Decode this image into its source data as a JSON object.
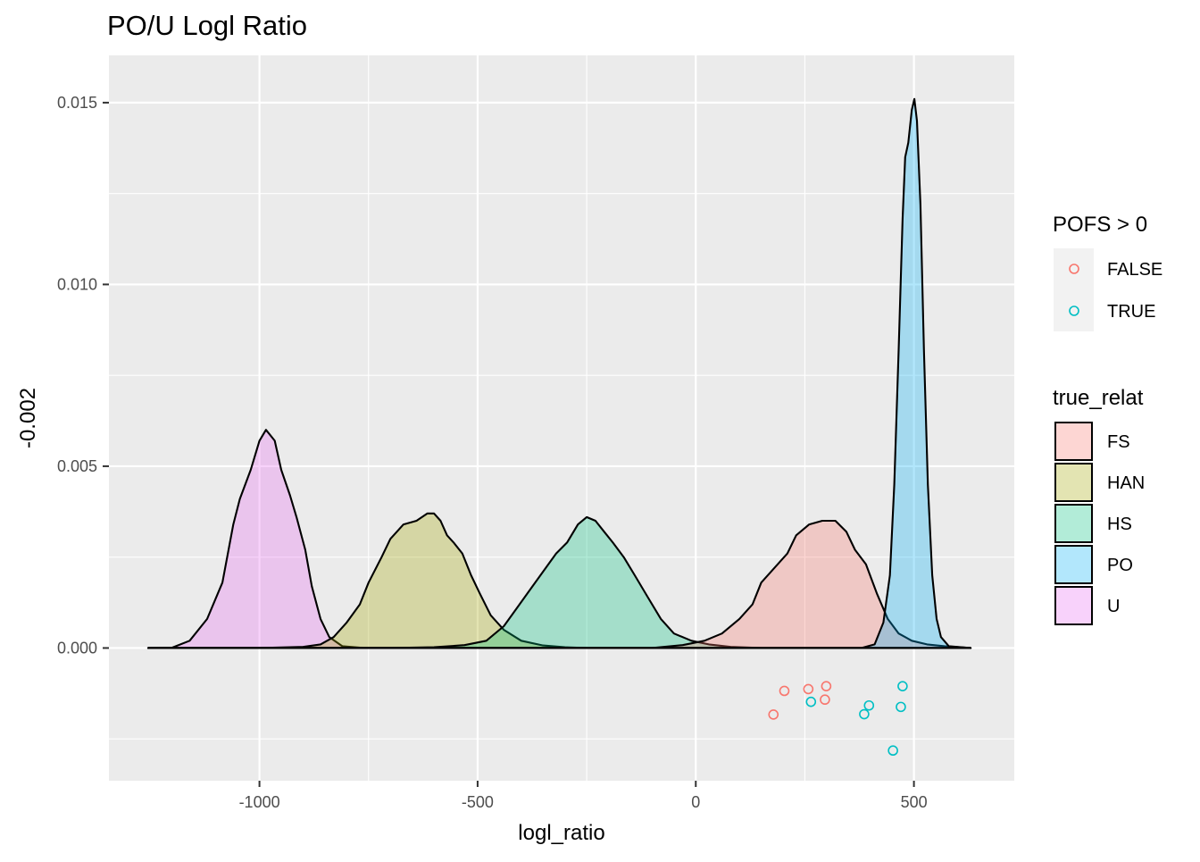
{
  "chart_data": {
    "type": "area",
    "title": "PO/U Logl Ratio",
    "xlabel": "logl_ratio",
    "ylabel": "-0.002",
    "xlim": [
      -1345,
      730
    ],
    "ylim": [
      -0.00365,
      0.0163
    ],
    "x_ticks": [
      {
        "value": -1000,
        "label": "-1000"
      },
      {
        "value": -500,
        "label": "-500"
      },
      {
        "value": 0,
        "label": "0"
      },
      {
        "value": 500,
        "label": "500"
      }
    ],
    "y_ticks": [
      {
        "value": 0,
        "label": "0.000"
      },
      {
        "value": 0.005,
        "label": "0.005"
      },
      {
        "value": 0.01,
        "label": "0.010"
      },
      {
        "value": 0.015,
        "label": "0.015"
      }
    ],
    "grid": true,
    "legend_position": "right",
    "fill_legend": {
      "title": "true_relat",
      "entries": [
        {
          "name": "FS",
          "color": "#F8766D"
        },
        {
          "name": "HAN",
          "color": "#A3A500"
        },
        {
          "name": "HS",
          "color": "#00BF7D"
        },
        {
          "name": "PO",
          "color": "#00B0F6"
        },
        {
          "name": "U",
          "color": "#E76BF3"
        }
      ]
    },
    "point_legend": {
      "title": "POFS > 0",
      "entries": [
        {
          "name": "FALSE",
          "color": "#F8766D"
        },
        {
          "name": "TRUE",
          "color": "#00BFC4"
        }
      ]
    },
    "density_series": [
      {
        "name": "U",
        "color": "#E76BF3",
        "points": [
          [
            -1255,
            0
          ],
          [
            -1200,
            1e-05
          ],
          [
            -1160,
            0.0002
          ],
          [
            -1120,
            0.0008
          ],
          [
            -1085,
            0.0018
          ],
          [
            -1060,
            0.0034
          ],
          [
            -1045,
            0.0041
          ],
          [
            -1020,
            0.0049
          ],
          [
            -1000,
            0.0057
          ],
          [
            -985,
            0.006
          ],
          [
            -965,
            0.0057
          ],
          [
            -950,
            0.0049
          ],
          [
            -930,
            0.0042
          ],
          [
            -915,
            0.0036
          ],
          [
            -895,
            0.0027
          ],
          [
            -880,
            0.0017
          ],
          [
            -860,
            0.0008
          ],
          [
            -840,
            0.0003
          ],
          [
            -810,
            5e-05
          ],
          [
            -760,
            0
          ],
          [
            -700,
            0
          ],
          [
            -650,
            0
          ],
          [
            -600,
            0
          ],
          [
            -550,
            0
          ],
          [
            -500,
            0
          ],
          [
            -450,
            0
          ],
          [
            -400,
            0
          ],
          [
            -350,
            0
          ],
          [
            -300,
            0
          ],
          [
            -250,
            0
          ],
          [
            -200,
            0
          ],
          [
            -150,
            0
          ],
          [
            -100,
            0
          ],
          [
            -50,
            0
          ],
          [
            0,
            0
          ],
          [
            50,
            0
          ],
          [
            100,
            0
          ],
          [
            150,
            0
          ],
          [
            200,
            0
          ],
          [
            250,
            0
          ],
          [
            300,
            0
          ],
          [
            350,
            0
          ],
          [
            400,
            0
          ],
          [
            450,
            0
          ],
          [
            500,
            0
          ],
          [
            550,
            0
          ],
          [
            630,
            0
          ]
        ]
      },
      {
        "name": "HAN",
        "color": "#A3A500",
        "points": [
          [
            -1255,
            0
          ],
          [
            -1000,
            0
          ],
          [
            -900,
            3e-05
          ],
          [
            -860,
            0.0001
          ],
          [
            -830,
            0.0003
          ],
          [
            -800,
            0.0007
          ],
          [
            -770,
            0.0012
          ],
          [
            -750,
            0.0018
          ],
          [
            -720,
            0.0025
          ],
          [
            -700,
            0.003
          ],
          [
            -670,
            0.0034
          ],
          [
            -640,
            0.0035
          ],
          [
            -615,
            0.0037
          ],
          [
            -600,
            0.0037
          ],
          [
            -585,
            0.0035
          ],
          [
            -570,
            0.0031
          ],
          [
            -555,
            0.0029
          ],
          [
            -535,
            0.0026
          ],
          [
            -515,
            0.002
          ],
          [
            -495,
            0.0015
          ],
          [
            -470,
            0.0009
          ],
          [
            -440,
            0.0005
          ],
          [
            -400,
            0.0002
          ],
          [
            -350,
            7e-05
          ],
          [
            -300,
            2e-05
          ],
          [
            -250,
            0
          ],
          [
            0,
            0
          ],
          [
            630,
            0
          ]
        ]
      },
      {
        "name": "HS",
        "color": "#00BF7D",
        "points": [
          [
            -1255,
            0
          ],
          [
            -700,
            0
          ],
          [
            -600,
            2e-05
          ],
          [
            -530,
            8e-05
          ],
          [
            -480,
            0.0002
          ],
          [
            -440,
            0.0006
          ],
          [
            -410,
            0.0011
          ],
          [
            -380,
            0.0016
          ],
          [
            -350,
            0.0021
          ],
          [
            -320,
            0.0026
          ],
          [
            -295,
            0.0029
          ],
          [
            -270,
            0.0034
          ],
          [
            -250,
            0.0036
          ],
          [
            -230,
            0.0035
          ],
          [
            -210,
            0.0032
          ],
          [
            -190,
            0.0029
          ],
          [
            -165,
            0.0025
          ],
          [
            -140,
            0.002
          ],
          [
            -110,
            0.0014
          ],
          [
            -80,
            0.0008
          ],
          [
            -50,
            0.0004
          ],
          [
            -10,
            0.0002
          ],
          [
            30,
            0.0001
          ],
          [
            80,
            3e-05
          ],
          [
            150,
            0
          ],
          [
            630,
            0
          ]
        ]
      },
      {
        "name": "FS",
        "color": "#F8766D",
        "points": [
          [
            -1255,
            0
          ],
          [
            -100,
            0
          ],
          [
            -30,
            8e-05
          ],
          [
            20,
            0.0002
          ],
          [
            60,
            0.0004
          ],
          [
            100,
            0.0008
          ],
          [
            130,
            0.0012
          ],
          [
            150,
            0.0018
          ],
          [
            180,
            0.0022
          ],
          [
            210,
            0.0026
          ],
          [
            230,
            0.0031
          ],
          [
            260,
            0.0034
          ],
          [
            290,
            0.0035
          ],
          [
            320,
            0.0035
          ],
          [
            345,
            0.0032
          ],
          [
            365,
            0.0027
          ],
          [
            390,
            0.0023
          ],
          [
            415,
            0.0015
          ],
          [
            440,
            0.0008
          ],
          [
            465,
            0.0004
          ],
          [
            495,
            0.0002
          ],
          [
            530,
            0.0001
          ],
          [
            570,
            5e-05
          ],
          [
            630,
            0
          ]
        ]
      },
      {
        "name": "PO",
        "color": "#00B0F6",
        "points": [
          [
            -1255,
            0
          ],
          [
            380,
            0
          ],
          [
            410,
            0.0001
          ],
          [
            430,
            0.0007
          ],
          [
            445,
            0.002
          ],
          [
            455,
            0.0045
          ],
          [
            465,
            0.0082
          ],
          [
            474,
            0.0118
          ],
          [
            480,
            0.0135
          ],
          [
            487,
            0.0139
          ],
          [
            495,
            0.0148
          ],
          [
            501,
            0.0151
          ],
          [
            507,
            0.0145
          ],
          [
            515,
            0.0122
          ],
          [
            523,
            0.0082
          ],
          [
            532,
            0.0045
          ],
          [
            542,
            0.002
          ],
          [
            552,
            0.0008
          ],
          [
            562,
            0.0003
          ],
          [
            580,
            5e-05
          ],
          [
            630,
            0
          ]
        ]
      }
    ],
    "points": [
      {
        "x": 178,
        "y": -0.00183,
        "pofs": "FALSE"
      },
      {
        "x": 203,
        "y": -0.00118,
        "pofs": "FALSE"
      },
      {
        "x": 258,
        "y": -0.00113,
        "pofs": "FALSE"
      },
      {
        "x": 264,
        "y": -0.00148,
        "pofs": "TRUE"
      },
      {
        "x": 296,
        "y": -0.00142,
        "pofs": "FALSE"
      },
      {
        "x": 299,
        "y": -0.00105,
        "pofs": "FALSE"
      },
      {
        "x": 386,
        "y": -0.00182,
        "pofs": "TRUE"
      },
      {
        "x": 397,
        "y": -0.00158,
        "pofs": "TRUE"
      },
      {
        "x": 452,
        "y": -0.00282,
        "pofs": "TRUE"
      },
      {
        "x": 470,
        "y": -0.00162,
        "pofs": "TRUE"
      },
      {
        "x": 474,
        "y": -0.00105,
        "pofs": "TRUE"
      }
    ]
  }
}
